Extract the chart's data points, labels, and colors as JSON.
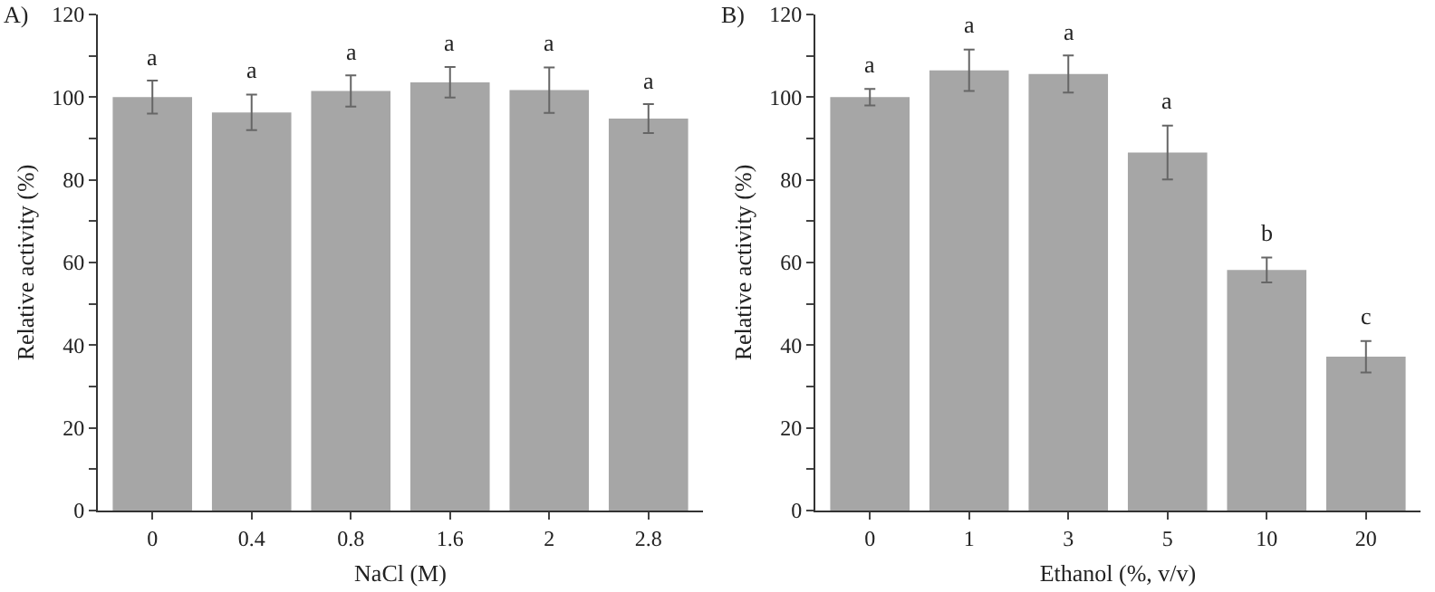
{
  "chart_data": [
    {
      "type": "bar",
      "title": "A)",
      "xlabel": "NaCl (M)",
      "ylabel": "Relative activity (%)",
      "categories": [
        "0",
        "0.4",
        "0.8",
        "1.6",
        "2",
        "2.8"
      ],
      "values": [
        100,
        96.3,
        101.5,
        103.6,
        101.7,
        94.8
      ],
      "errors": [
        4,
        4.3,
        3.8,
        3.7,
        5.5,
        3.5
      ],
      "color": "#a6a6a6",
      "ylim": [
        0,
        120
      ],
      "yticks": [
        0,
        {
          "value": 10,
          "label": null
        },
        20,
        {
          "value": 30,
          "label": null
        },
        40,
        {
          "value": 50,
          "label": null
        },
        60,
        {
          "value": 70,
          "label": null
        },
        80,
        {
          "value": 90,
          "label": null
        },
        100,
        {
          "value": 110,
          "label": null
        },
        120
      ],
      "grid": false,
      "annotations": [
        "a",
        "a",
        "a",
        "a",
        "a",
        "a"
      ]
    },
    {
      "type": "bar",
      "title": "B)",
      "xlabel": "Ethanol (%, v/v)",
      "ylabel": "Relative activity (%)",
      "categories": [
        "0",
        "1",
        "3",
        "5",
        "10",
        "20"
      ],
      "values": [
        100,
        106.5,
        105.6,
        86.6,
        58.2,
        37.2
      ],
      "errors": [
        2,
        5,
        4.5,
        6.5,
        3,
        3.8
      ],
      "color": "#a6a6a6",
      "ylim": [
        0,
        120
      ],
      "yticks": [
        0,
        {
          "value": 10,
          "label": null
        },
        20,
        {
          "value": 30,
          "label": null
        },
        40,
        {
          "value": 50,
          "label": null
        },
        60,
        {
          "value": 70,
          "label": null
        },
        80,
        {
          "value": 90,
          "label": null
        },
        100,
        {
          "value": 110,
          "label": null
        },
        120
      ],
      "grid": false,
      "annotations": [
        "a",
        "a",
        "a",
        "a",
        "b",
        "c"
      ]
    }
  ]
}
